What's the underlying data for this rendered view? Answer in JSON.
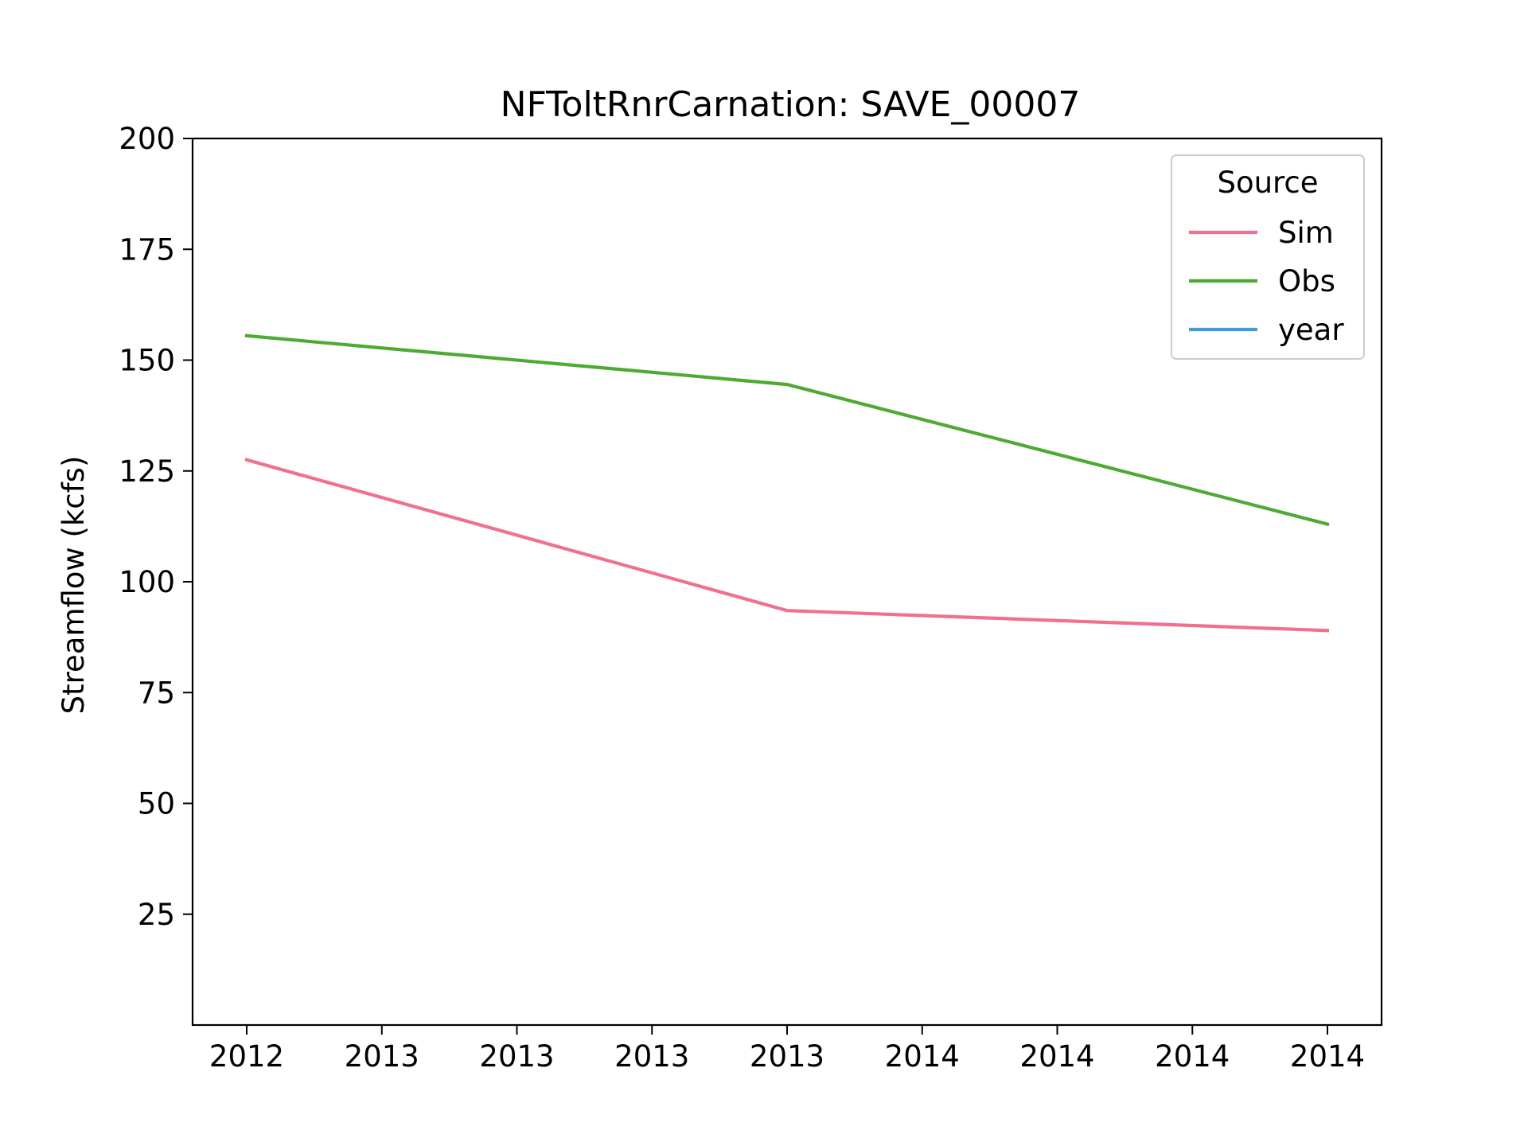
{
  "chart_data": {
    "type": "line",
    "title": "NFToltRnrCarnation: SAVE_00007",
    "xlabel": "",
    "ylabel": "Streamflow (kcfs)",
    "x_tick_labels": [
      "2012",
      "2013",
      "2013",
      "2013",
      "2013",
      "2014",
      "2014",
      "2014",
      "2014"
    ],
    "y_ticks": [
      25,
      50,
      75,
      100,
      125,
      150,
      175,
      200
    ],
    "xlim": [
      0,
      8
    ],
    "ylim": [
      0,
      200
    ],
    "grid": false,
    "legend": {
      "title": "Source",
      "position": "top-right",
      "entries": [
        "Sim",
        "Obs",
        "year"
      ]
    },
    "series": [
      {
        "name": "Sim",
        "color": "#f0708e",
        "points": [
          [
            0,
            127.5
          ],
          [
            4,
            93.5
          ],
          [
            8,
            89
          ]
        ]
      },
      {
        "name": "Obs",
        "color": "#4daa35",
        "points": [
          [
            0,
            155.5
          ],
          [
            4,
            144.5
          ],
          [
            8,
            113
          ]
        ]
      },
      {
        "name": "year",
        "color": "#3c9de0",
        "points": []
      }
    ]
  }
}
